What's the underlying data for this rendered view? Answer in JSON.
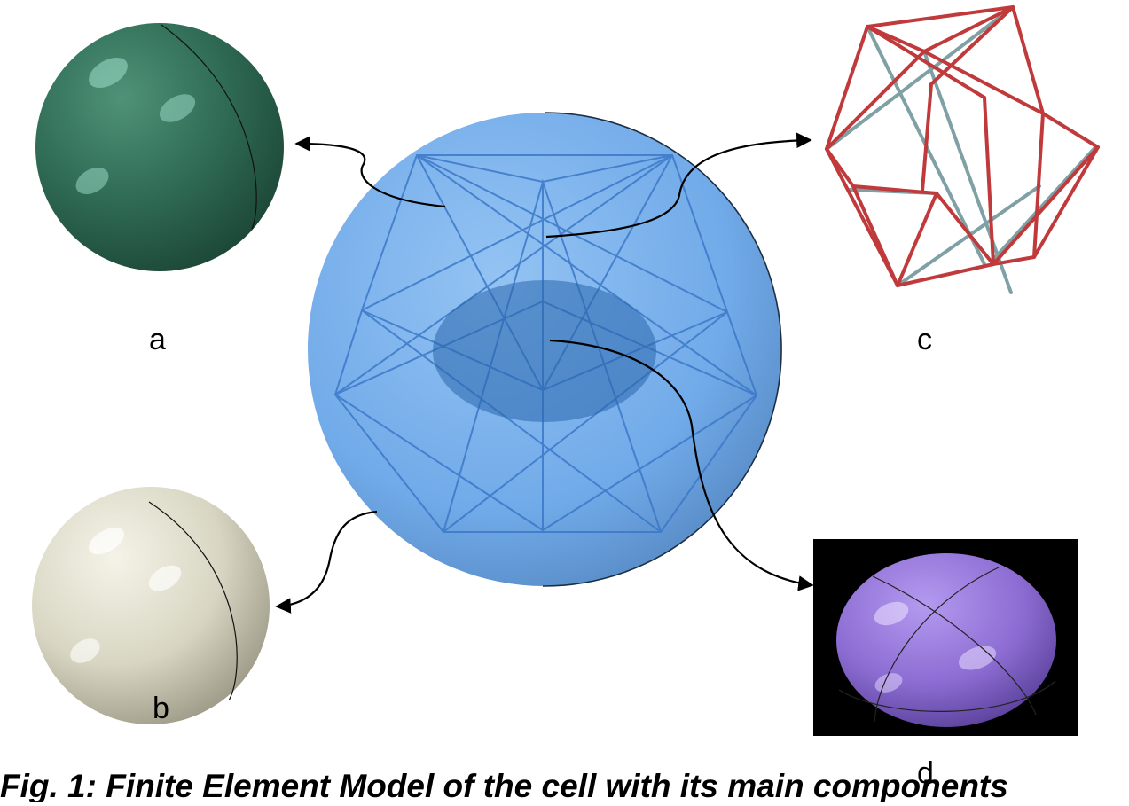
{
  "labels": {
    "a": "a",
    "b": "b",
    "c": "c",
    "d": "d"
  },
  "caption": "Fig. 1: Finite Element Model of the cell with its main components",
  "colors": {
    "membrane": "#2f6b55",
    "cytoplasm": "#d8d6c2",
    "cytoskeleton_strut": "#c0393b",
    "cytoskeleton_cable": "#7fa0a4",
    "nucleus": "#8c6cd2",
    "cell_body": "#6aa6e8"
  }
}
